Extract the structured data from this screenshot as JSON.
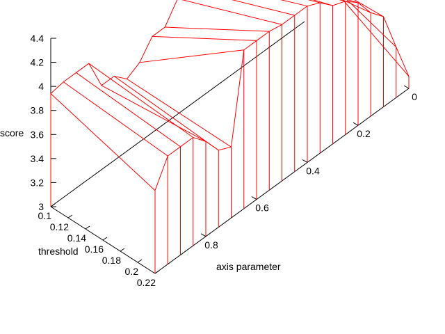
{
  "chart_data": {
    "type": "surface3d",
    "title": "",
    "zlabel": "score",
    "xlabel": "threshold",
    "ylabel": "axis parameter",
    "zlim": [
      3,
      4.4
    ],
    "xlim": [
      0.1,
      0.22
    ],
    "ylim": [
      0,
      1
    ],
    "z_ticks": [
      "3",
      "3.2",
      "3.4",
      "3.6",
      "3.8",
      "4",
      "4.2",
      "4.4"
    ],
    "x_ticks": [
      "0.1",
      "0.12",
      "0.14",
      "0.16",
      "0.18",
      "0.2",
      "0.22"
    ],
    "y_ticks": [
      "0",
      "0.2",
      "0.4",
      "0.6",
      "0.8"
    ],
    "surface_color": "#ff0000",
    "grid": false,
    "threshold_values": [
      0.1,
      0.22
    ],
    "axis_parameter_values": [
      0,
      0.05,
      0.1,
      0.15,
      0.2,
      0.25,
      0.3,
      0.35,
      0.4,
      0.45,
      0.5,
      0.55,
      0.6,
      0.65,
      0.7,
      0.75,
      0.8,
      0.85,
      0.9,
      0.95,
      1.0
    ],
    "series": [
      {
        "threshold": 0.1,
        "score": [
          3.55,
          3.7,
          3.7,
          3.7,
          3.72,
          3.75,
          3.85,
          3.92,
          3.95,
          3.96,
          3.96,
          3.8,
          3.8,
          3.66,
          3.6,
          3.7,
          3.7,
          3.96,
          3.96,
          3.96,
          3.94
        ]
      },
      {
        "threshold": 0.22,
        "score": [
          3.1,
          3.42,
          3.75,
          3.86,
          4.02,
          4.11,
          4.15,
          4.25,
          4.3,
          4.3,
          4.3,
          4.32,
          4.32,
          4.32,
          3.59,
          3.64,
          3.79,
          3.9,
          3.9,
          3.9,
          3.69
        ]
      }
    ]
  }
}
